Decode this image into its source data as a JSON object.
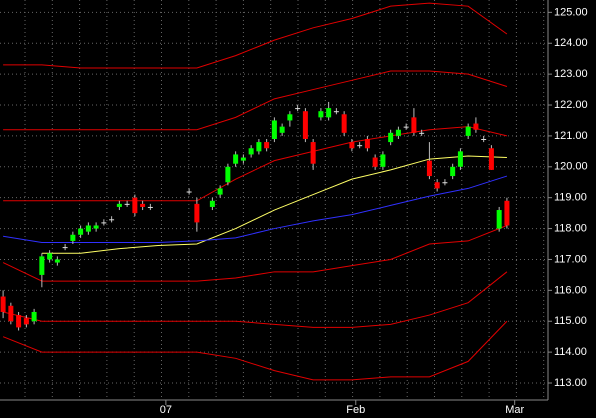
{
  "chart_data": {
    "type": "candlestick",
    "xlim": [
      -0.4,
      70.3
    ],
    "ylim": [
      112.45,
      125.4
    ],
    "yticks": [
      {
        "value": 113,
        "label": "113.00"
      },
      {
        "value": 114,
        "label": "114.00"
      },
      {
        "value": 115,
        "label": "115.00"
      },
      {
        "value": 116,
        "label": "116.00"
      },
      {
        "value": 117,
        "label": "117.00"
      },
      {
        "value": 118,
        "label": "118.00"
      },
      {
        "value": 119,
        "label": "119.00"
      },
      {
        "value": 120,
        "label": "120.00"
      },
      {
        "value": 121,
        "label": "121.00"
      },
      {
        "value": 122,
        "label": "122.00"
      },
      {
        "value": 123,
        "label": "123.00"
      },
      {
        "value": 124,
        "label": "124.00"
      },
      {
        "value": 125,
        "label": "125.00"
      }
    ],
    "xticks": [
      {
        "value": 21,
        "label": "07"
      },
      {
        "value": 45.5,
        "label": "Feb"
      },
      {
        "value": 66,
        "label": "Mar"
      }
    ],
    "grid": true,
    "up_color": "#00ff00",
    "down_color": "#ff0000",
    "candles": {
      "x": [
        0,
        1,
        2,
        3,
        4,
        5,
        6,
        7,
        8,
        9,
        10,
        11,
        12,
        13,
        14,
        15,
        16,
        17,
        18,
        19,
        24,
        25,
        27,
        28,
        29,
        30,
        31,
        32,
        33,
        34,
        35,
        36,
        37,
        38,
        39,
        40,
        41,
        42,
        43,
        44,
        45,
        46,
        47,
        48,
        49,
        50,
        51,
        52,
        53,
        54,
        55,
        56,
        57,
        58,
        59,
        60,
        61,
        62,
        63,
        64,
        65
      ],
      "open": [
        115.8,
        115.5,
        115.2,
        115.1,
        115.0,
        116.5,
        117.0,
        116.9,
        117.4,
        117.6,
        117.8,
        117.9,
        118.0,
        118.2,
        118.3,
        118.7,
        118.8,
        119.0,
        118.8,
        118.7,
        119.2,
        118.8,
        118.7,
        119.1,
        119.5,
        120.1,
        120.2,
        120.4,
        120.5,
        120.8,
        120.9,
        121.1,
        121.5,
        121.9,
        121.8,
        120.8,
        121.6,
        121.6,
        121.8,
        121.7,
        120.8,
        120.7,
        120.9,
        120.3,
        120.0,
        120.8,
        121.0,
        121.3,
        121.6,
        121.1,
        120.2,
        119.5,
        119.5,
        119.7,
        120.0,
        121.0,
        121.4,
        120.9,
        120.6,
        118.0,
        118.9
      ],
      "high": [
        116.0,
        115.6,
        115.3,
        115.2,
        115.4,
        117.2,
        117.3,
        117.1,
        117.5,
        117.9,
        118.1,
        118.2,
        118.2,
        118.3,
        118.4,
        118.9,
        118.9,
        119.1,
        118.9,
        118.8,
        119.3,
        119.0,
        119.0,
        119.4,
        120.1,
        120.5,
        120.4,
        120.7,
        120.9,
        120.9,
        121.6,
        121.4,
        121.8,
        122.0,
        121.9,
        120.9,
        121.9,
        122.1,
        121.9,
        121.8,
        120.9,
        120.8,
        121.0,
        120.4,
        120.5,
        121.2,
        121.3,
        121.4,
        121.9,
        121.2,
        120.8,
        119.6,
        119.6,
        120.1,
        120.6,
        121.4,
        121.6,
        121.0,
        120.7,
        118.7,
        119.0
      ],
      "low": [
        115.1,
        114.9,
        114.7,
        114.8,
        114.9,
        116.1,
        116.9,
        116.8,
        117.3,
        117.5,
        117.7,
        117.8,
        117.9,
        118.1,
        118.2,
        118.6,
        118.7,
        118.4,
        118.6,
        118.6,
        119.1,
        117.9,
        118.6,
        119.0,
        119.4,
        120.0,
        120.1,
        120.3,
        120.4,
        120.5,
        120.8,
        121.0,
        121.3,
        121.8,
        120.8,
        119.9,
        121.5,
        121.5,
        121.7,
        121.0,
        120.5,
        120.6,
        120.5,
        119.9,
        119.9,
        120.7,
        120.9,
        121.2,
        121.0,
        121.0,
        119.6,
        119.2,
        119.4,
        119.6,
        119.9,
        120.9,
        121.1,
        120.8,
        119.9,
        117.9,
        118.0
      ],
      "close": [
        115.3,
        115.0,
        114.8,
        114.9,
        115.3,
        117.1,
        117.2,
        117.0,
        117.4,
        117.8,
        118.0,
        118.1,
        118.1,
        118.2,
        118.3,
        118.8,
        118.8,
        118.5,
        118.7,
        118.7,
        119.2,
        118.2,
        118.9,
        119.3,
        120.0,
        120.4,
        120.3,
        120.6,
        120.8,
        120.6,
        121.5,
        121.3,
        121.7,
        121.9,
        120.9,
        120.1,
        121.8,
        121.9,
        121.8,
        121.1,
        120.6,
        120.7,
        120.6,
        120.0,
        120.4,
        121.1,
        121.2,
        121.3,
        121.1,
        121.1,
        119.7,
        119.3,
        119.5,
        120.0,
        120.5,
        121.3,
        121.2,
        120.9,
        119.9,
        118.6,
        118.1
      ]
    },
    "lines_x": [
      0,
      5,
      10,
      15,
      20,
      25,
      30,
      35,
      40,
      45,
      50,
      55,
      60,
      65
    ],
    "series": [
      {
        "color": "#e00000",
        "values": [
          123.3,
          123.3,
          123.2,
          123.2,
          123.2,
          123.2,
          123.6,
          124.1,
          124.5,
          124.8,
          125.2,
          125.3,
          125.2,
          124.3
        ]
      },
      {
        "color": "#e00000",
        "values": [
          121.2,
          121.2,
          121.2,
          121.2,
          121.2,
          121.2,
          121.6,
          122.2,
          122.5,
          122.8,
          123.1,
          123.1,
          123.0,
          122.6
        ]
      },
      {
        "color": "#e00000",
        "values": [
          118.9,
          118.9,
          118.9,
          118.9,
          118.9,
          118.9,
          119.6,
          120.2,
          120.5,
          120.8,
          121.0,
          121.2,
          121.3,
          121.0
        ]
      },
      {
        "color": "#ffff66",
        "values": [
          null,
          117.2,
          117.2,
          117.35,
          117.45,
          117.5,
          118.0,
          118.6,
          119.1,
          119.6,
          119.9,
          120.25,
          120.35,
          120.3
        ]
      },
      {
        "color": "#3030ff",
        "values": [
          117.75,
          117.55,
          117.55,
          117.55,
          117.55,
          117.6,
          117.7,
          118.0,
          118.25,
          118.45,
          118.75,
          119.05,
          119.3,
          119.7
        ]
      },
      {
        "color": "#e00000",
        "values": [
          116.9,
          116.3,
          116.3,
          116.3,
          116.3,
          116.3,
          116.4,
          116.6,
          116.6,
          116.8,
          117.0,
          117.5,
          117.6,
          118.1
        ]
      },
      {
        "color": "#e00000",
        "values": [
          115.3,
          115.0,
          115.0,
          115.0,
          115.0,
          115.0,
          115.0,
          114.9,
          114.8,
          114.8,
          114.9,
          115.2,
          115.6,
          116.6
        ]
      },
      {
        "color": "#e00000",
        "values": [
          114.5,
          114.0,
          114.0,
          114.0,
          114.0,
          114.0,
          113.8,
          113.4,
          113.1,
          113.1,
          113.2,
          113.2,
          113.7,
          115.0
        ]
      }
    ]
  }
}
